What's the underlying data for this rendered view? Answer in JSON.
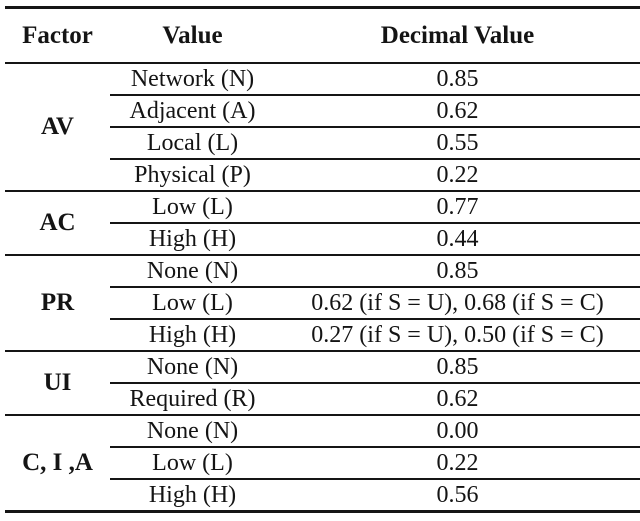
{
  "table": {
    "headers": {
      "factor": "Factor",
      "value": "Value",
      "decimal": "Decimal Value"
    },
    "groups": [
      {
        "factor": "AV",
        "rows": [
          {
            "value": "Network (N)",
            "decimal": "0.85"
          },
          {
            "value": "Adjacent (A)",
            "decimal": "0.62"
          },
          {
            "value": "Local (L)",
            "decimal": "0.55"
          },
          {
            "value": "Physical (P)",
            "decimal": "0.22"
          }
        ]
      },
      {
        "factor": "AC",
        "rows": [
          {
            "value": "Low (L)",
            "decimal": "0.77"
          },
          {
            "value": "High (H)",
            "decimal": "0.44"
          }
        ]
      },
      {
        "factor": "PR",
        "rows": [
          {
            "value": "None (N)",
            "decimal": "0.85"
          },
          {
            "value": "Low (L)",
            "decimal": "0.62 (if S = U), 0.68 (if S = C)"
          },
          {
            "value": "High (H)",
            "decimal": "0.27 (if S = U), 0.50 (if S = C)"
          }
        ]
      },
      {
        "factor": "UI",
        "rows": [
          {
            "value": "None (N)",
            "decimal": "0.85"
          },
          {
            "value": "Required (R)",
            "decimal": "0.62"
          }
        ]
      },
      {
        "factor": "C, I ,A",
        "rows": [
          {
            "value": "None (N)",
            "decimal": "0.00"
          },
          {
            "value": "Low (L)",
            "decimal": "0.22"
          },
          {
            "value": "High (H)",
            "decimal": "0.56"
          }
        ]
      }
    ]
  },
  "colors": {
    "rule": "#151515",
    "text": "#141414",
    "background": "#ffffff"
  }
}
